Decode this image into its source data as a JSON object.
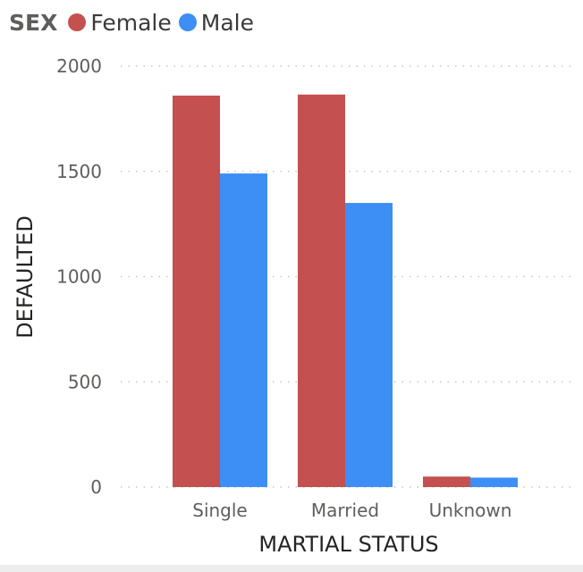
{
  "legend": {
    "title": "SEX",
    "items": [
      {
        "label": "Female",
        "color": "#c4504f"
      },
      {
        "label": "Male",
        "color": "#3d8ef5"
      }
    ]
  },
  "chart_data": {
    "type": "bar",
    "categories": [
      "Single",
      "Married",
      "Unknown"
    ],
    "series": [
      {
        "name": "Female",
        "color": "#c4504f",
        "values": [
          1860,
          1865,
          50
        ]
      },
      {
        "name": "Male",
        "color": "#3d8ef5",
        "values": [
          1490,
          1350,
          45
        ]
      }
    ],
    "xlabel": "MARTIAL STATUS",
    "ylabel": "DEFAULTED",
    "ylim": [
      0,
      2000
    ],
    "yticks": [
      0,
      500,
      1000,
      1500,
      2000
    ],
    "grid": true,
    "legend_position": "top-left"
  }
}
